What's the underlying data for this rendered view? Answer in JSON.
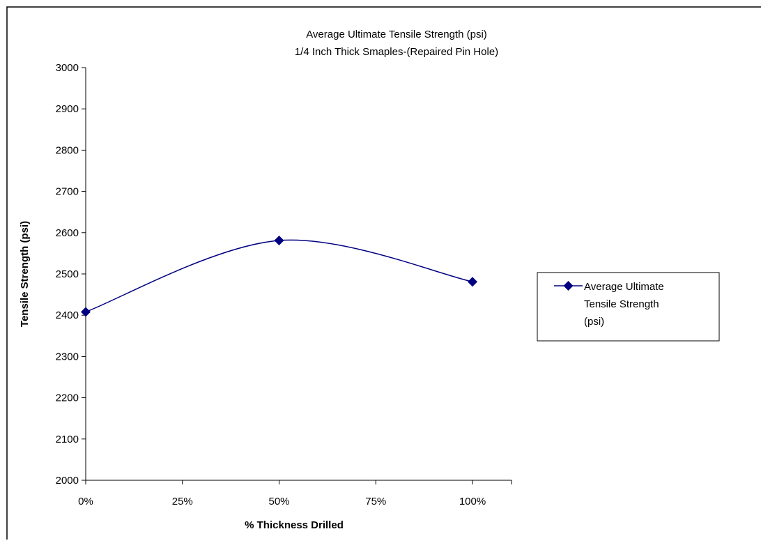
{
  "chart_data": {
    "type": "line",
    "title": "Average Ultimate Tensile Strength (psi)",
    "subtitle": "1/4 Inch Thick Smaples-(Repaired Pin Hole)",
    "xlabel": "% Thickness Drilled",
    "ylabel": "Tensile Strength (psi)",
    "categories": [
      "0%",
      "25%",
      "50%",
      "75%",
      "100%"
    ],
    "x": [
      0,
      50,
      100
    ],
    "series": [
      {
        "name": "Average Ultimate Tensile Strength (psi)",
        "legend_lines": [
          "Average Ultimate",
          "Tensile Strength",
          "(psi)"
        ],
        "values": [
          2408,
          2581,
          2481
        ],
        "color": "#000080",
        "marker": "diamond",
        "smoothed": true
      }
    ],
    "xlim": [
      0,
      110
    ],
    "ylim": [
      2000,
      3000
    ],
    "yticks": [
      2000,
      2100,
      2200,
      2300,
      2400,
      2500,
      2600,
      2700,
      2800,
      2900,
      3000
    ],
    "xticks": [
      0,
      25,
      50,
      75,
      100
    ],
    "grid": false,
    "legend_position": "right"
  }
}
